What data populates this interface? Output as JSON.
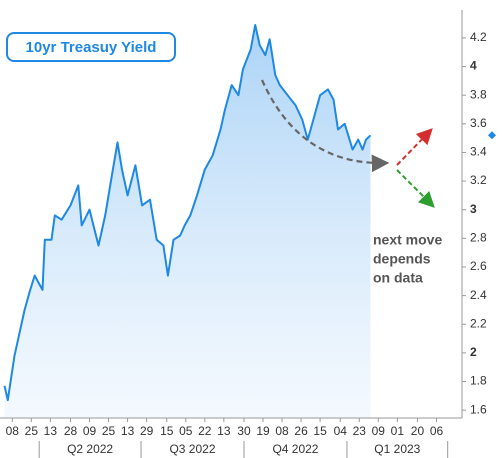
{
  "chart_data": {
    "type": "line",
    "title": "10yr Treasuy Yield",
    "x": [
      4,
      7,
      13,
      22,
      27,
      31,
      38,
      40,
      46,
      49,
      55,
      63,
      70,
      73,
      80,
      88,
      94,
      100,
      105,
      109,
      114,
      121,
      127,
      134,
      140,
      146,
      150,
      155,
      161,
      165,
      170,
      176,
      183,
      190,
      197,
      201,
      207,
      213,
      217,
      224,
      228,
      232,
      237,
      241,
      246,
      250,
      257,
      264,
      270,
      275,
      280,
      286,
      293,
      298,
      302,
      308,
      315,
      320,
      324,
      327,
      331
    ],
    "values": [
      1.77,
      1.67,
      1.98,
      2.3,
      2.44,
      2.54,
      2.44,
      2.79,
      2.79,
      2.96,
      2.93,
      3.03,
      3.17,
      2.89,
      3.0,
      2.75,
      2.96,
      3.24,
      3.47,
      3.28,
      3.1,
      3.31,
      3.03,
      3.07,
      2.79,
      2.75,
      2.54,
      2.79,
      2.82,
      2.89,
      2.96,
      3.1,
      3.28,
      3.38,
      3.56,
      3.7,
      3.87,
      3.8,
      3.98,
      4.12,
      4.29,
      4.15,
      4.08,
      4.19,
      3.94,
      3.87,
      3.8,
      3.73,
      3.63,
      3.49,
      3.63,
      3.8,
      3.84,
      3.77,
      3.56,
      3.6,
      3.42,
      3.49,
      3.42,
      3.49,
      3.52
    ],
    "color": "#1e88e5",
    "ylim": [
      1.545,
      4.36
    ],
    "yticks": [
      1.6,
      1.8,
      2,
      2.2,
      2.4,
      2.6,
      2.8,
      3,
      3.2,
      3.4,
      3.6,
      3.8,
      4,
      4.2
    ],
    "xlim": [
      0,
      411
    ],
    "xticks": [
      {
        "value": 11,
        "label": "08"
      },
      {
        "value": 28,
        "label": "25"
      },
      {
        "value": 45,
        "label": "13"
      },
      {
        "value": 63,
        "label": "28"
      },
      {
        "value": 80,
        "label": "09"
      },
      {
        "value": 97,
        "label": "25"
      },
      {
        "value": 114,
        "label": "13"
      },
      {
        "value": 131,
        "label": "29"
      },
      {
        "value": 149,
        "label": "15"
      },
      {
        "value": 166,
        "label": "05"
      },
      {
        "value": 183,
        "label": "22"
      },
      {
        "value": 200,
        "label": "13"
      },
      {
        "value": 218,
        "label": "30"
      },
      {
        "value": 235,
        "label": "19"
      },
      {
        "value": 252,
        "label": "08"
      },
      {
        "value": 269,
        "label": "26"
      },
      {
        "value": 286,
        "label": "15"
      },
      {
        "value": 304,
        "label": "04"
      },
      {
        "value": 321,
        "label": "23"
      },
      {
        "value": 338,
        "label": "09"
      },
      {
        "value": 355,
        "label": "01"
      },
      {
        "value": 373,
        "label": "20"
      },
      {
        "value": 390,
        "label": "06"
      }
    ],
    "quarters": [
      {
        "label": "Q2 2022",
        "start": 35,
        "end": 126
      },
      {
        "label": "Q3 2022",
        "start": 126,
        "end": 218
      },
      {
        "label": "Q4 2022",
        "start": 218,
        "end": 310
      },
      {
        "label": "Q1 2023",
        "start": 310,
        "end": 400
      }
    ],
    "annotation": [
      "next move",
      "depends",
      "on data"
    ]
  }
}
